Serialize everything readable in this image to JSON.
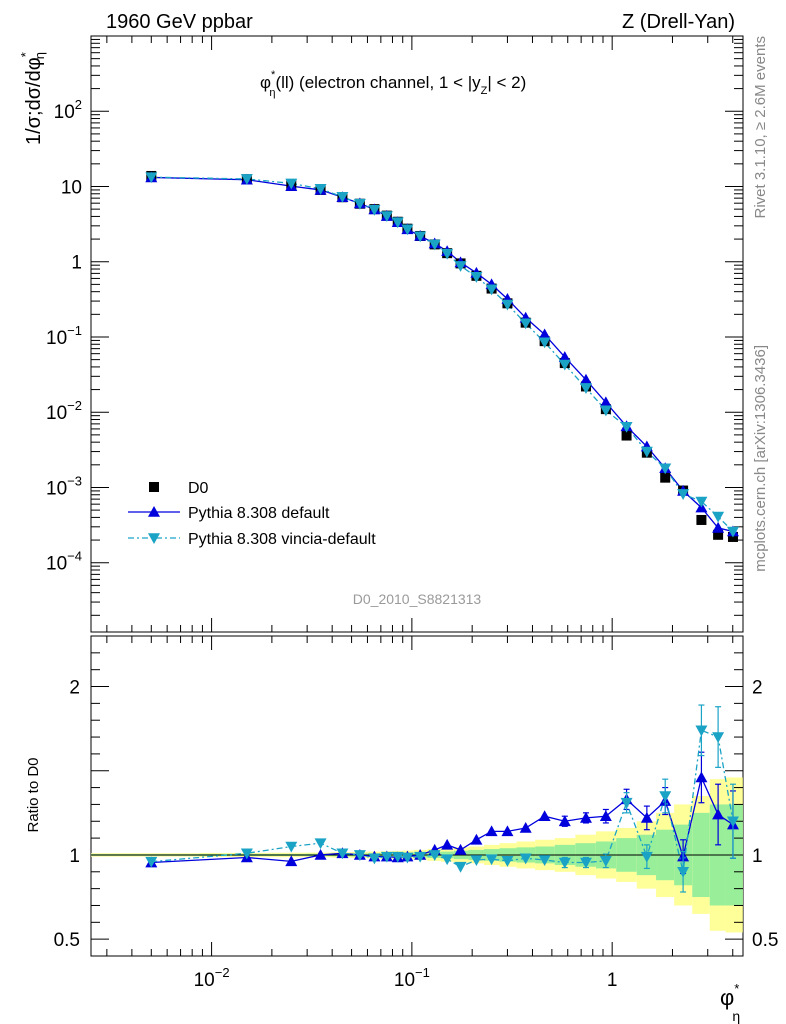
{
  "header": {
    "left": "1960 GeV ppbar",
    "right": "Z (Drell-Yan)"
  },
  "side": {
    "rivet": "Rivet 3.1.10, ≥ 2.6M events",
    "mcplots": "mcplots.cern.ch [arXiv:1306.3436]"
  },
  "chart_data": {
    "type": "line",
    "title": "φ*η(ll) (electron channel, 1 < |yZ| < 2)",
    "watermark": "D0_2010_S8821313",
    "xlabel": "φ*η",
    "ylabel": "1/σ;dσ/dφ*η",
    "ratio_ylabel": "Ratio to D0",
    "xscale": "log",
    "yscale": "log",
    "xlim": [
      0.0025,
      4.5
    ],
    "ylim": [
      1.2e-05,
      1000
    ],
    "ratio_ylim": [
      0.4,
      2.3
    ],
    "x_tick_labels": [
      "10^-2",
      "10^-1",
      "1"
    ],
    "y_tick_labels": [
      "10^-4",
      "10^-3",
      "10^-2",
      "10^-1",
      "1",
      "10",
      "10^2"
    ],
    "ratio_tick_labels": [
      "0.5",
      "1",
      "2"
    ],
    "legend_position": "bottom-left",
    "x": [
      0.005,
      0.015,
      0.025,
      0.035,
      0.045,
      0.055,
      0.065,
      0.075,
      0.085,
      0.095,
      0.11,
      0.13,
      0.15,
      0.175,
      0.21,
      0.25,
      0.3,
      0.37,
      0.46,
      0.58,
      0.74,
      0.93,
      1.18,
      1.49,
      1.84,
      2.26,
      2.79,
      3.38,
      4.01
    ],
    "series": [
      {
        "name": "D0",
        "marker": "square",
        "color": "#000000",
        "values": [
          13.8,
          12.5,
          10.5,
          9.0,
          7.2,
          5.9,
          5.0,
          4.1,
          3.4,
          2.75,
          2.2,
          1.7,
          1.3,
          0.95,
          0.65,
          0.44,
          0.28,
          0.155,
          0.088,
          0.045,
          0.022,
          0.011,
          0.0049,
          0.0029,
          0.00135,
          0.00091,
          0.00037,
          0.000235,
          0.00022
        ]
      },
      {
        "name": "Pythia 8.308 default",
        "marker": "triangle-up",
        "color": "#0000dd",
        "values": [
          13.2,
          12.3,
          10.1,
          9.0,
          7.2,
          5.95,
          4.95,
          4.05,
          3.35,
          2.7,
          2.2,
          1.75,
          1.38,
          0.98,
          0.71,
          0.5,
          0.32,
          0.18,
          0.108,
          0.054,
          0.027,
          0.0135,
          0.0065,
          0.0035,
          0.0018,
          0.0009,
          0.00054,
          0.00029,
          0.00026
        ]
      },
      {
        "name": "Pythia 8.308 vincia-default",
        "marker": "triangle-down",
        "color": "#1ba3c6",
        "values": [
          13.3,
          12.6,
          11.0,
          9.3,
          7.3,
          5.9,
          4.9,
          4.05,
          3.35,
          2.7,
          2.18,
          1.7,
          1.28,
          0.88,
          0.63,
          0.43,
          0.27,
          0.152,
          0.085,
          0.043,
          0.021,
          0.0106,
          0.0064,
          0.003,
          0.0018,
          0.00082,
          0.00065,
          0.00041,
          0.00026
        ]
      }
    ],
    "ratio": {
      "reference": 1.0,
      "series": [
        {
          "name": "Pythia 8.308 default",
          "values": [
            0.955,
            0.985,
            0.962,
            1.0,
            1.01,
            1.0,
            0.99,
            0.99,
            0.985,
            0.99,
            1.0,
            1.03,
            1.06,
            1.03,
            1.09,
            1.14,
            1.14,
            1.16,
            1.23,
            1.2,
            1.22,
            1.23,
            1.33,
            1.22,
            1.32,
            0.99,
            1.46,
            1.24,
            1.18
          ],
          "errors": [
            0.01,
            0.01,
            0.01,
            0.01,
            0.01,
            0.01,
            0.01,
            0.01,
            0.01,
            0.01,
            0.01,
            0.01,
            0.01,
            0.01,
            0.01,
            0.01,
            0.015,
            0.02,
            0.025,
            0.03,
            0.03,
            0.04,
            0.06,
            0.07,
            0.08,
            0.1,
            0.15,
            0.18,
            0.2
          ]
        },
        {
          "name": "Pythia 8.308 vincia-default",
          "values": [
            0.96,
            1.01,
            1.05,
            1.07,
            1.01,
            1.0,
            0.98,
            0.99,
            0.99,
            0.985,
            0.99,
            1.0,
            0.975,
            0.93,
            0.97,
            0.975,
            0.965,
            0.98,
            0.97,
            0.955,
            0.955,
            0.965,
            1.31,
            0.99,
            1.35,
            0.9,
            1.74,
            1.7,
            1.2
          ],
          "errors": [
            0.01,
            0.01,
            0.02,
            0.02,
            0.01,
            0.01,
            0.01,
            0.01,
            0.01,
            0.01,
            0.01,
            0.01,
            0.01,
            0.01,
            0.01,
            0.01,
            0.015,
            0.02,
            0.025,
            0.03,
            0.03,
            0.04,
            0.06,
            0.07,
            0.1,
            0.12,
            0.15,
            0.18,
            0.22
          ]
        }
      ],
      "stat_band": [
        0.005,
        0.006,
        0.006,
        0.007,
        0.008,
        0.009,
        0.01,
        0.011,
        0.012,
        0.013,
        0.015,
        0.018,
        0.02,
        0.025,
        0.03,
        0.035,
        0.04,
        0.045,
        0.05,
        0.06,
        0.07,
        0.08,
        0.1,
        0.12,
        0.15,
        0.18,
        0.25,
        0.3,
        0.3
      ],
      "total_band": [
        0.01,
        0.012,
        0.013,
        0.014,
        0.016,
        0.018,
        0.02,
        0.022,
        0.024,
        0.026,
        0.03,
        0.035,
        0.04,
        0.045,
        0.05,
        0.06,
        0.07,
        0.08,
        0.09,
        0.1,
        0.12,
        0.14,
        0.16,
        0.2,
        0.25,
        0.3,
        0.35,
        0.45,
        0.46
      ]
    }
  }
}
